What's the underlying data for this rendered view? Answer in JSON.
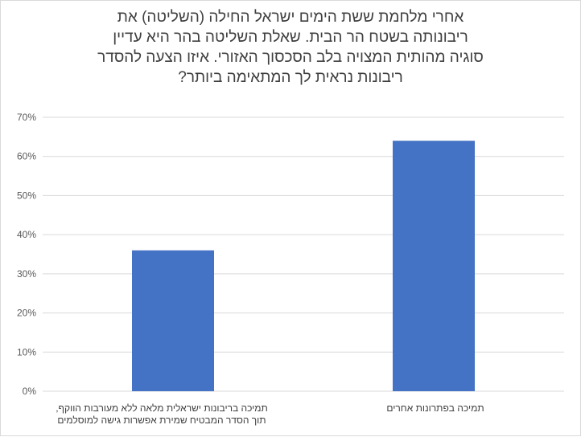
{
  "chart_data": {
    "type": "bar",
    "title_lines": [
      "אחרי מלחמת ששת הימים ישראל החילה (השליטה) את",
      "ריבונותה בשטח הר הבית. שאלת השליטה בהר היא עדיין",
      "סוגיה מהותית המצויה בלב הסכסוך האזורי. איזו הצעה להסדר",
      "ריבונות נראית לך המתאימה ביותר?"
    ],
    "categories": [
      {
        "lines": [
          "תמיכה בריבונות ישראלית מלאה ללא מעורבות הווקף,",
          "תוך הסדר המבטיח שמירת אפשרות גישה למוסלמים"
        ]
      },
      {
        "lines": [
          "תמיכה בפתרונות אחרים"
        ]
      }
    ],
    "values": [
      0.36,
      0.64
    ],
    "ylim": [
      0,
      0.7
    ],
    "yticks": [
      "0%",
      "10%",
      "20%",
      "30%",
      "40%",
      "50%",
      "60%",
      "70%"
    ],
    "grid": true,
    "legend": "none",
    "bar_color": "#4472c4",
    "grid_color": "#d9d9d9"
  }
}
